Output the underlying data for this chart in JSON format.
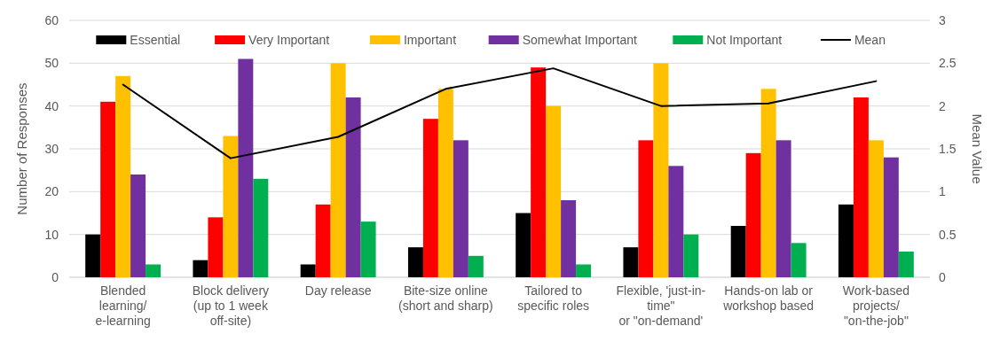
{
  "chart_data": {
    "type": "bar",
    "ylabel": "Number of Responses",
    "y2label": "Mean Value",
    "categories": [
      "Blended\nlearning/\ne-learning",
      "Block delivery\n(up to 1 week\noff-site)",
      "Day release",
      "Bite-size online\n(short and sharp)",
      "Tailored to\nspecific roles",
      "Flexible, 'just-in-\ntime\"\nor \"on-demand'",
      "Hands-on lab or\nworkshop based",
      "Work-based\nprojects/\n\"on-the-job\""
    ],
    "series": [
      {
        "name": "Essential",
        "color": "#000000",
        "values": [
          10,
          4,
          3,
          7,
          15,
          7,
          12,
          17
        ]
      },
      {
        "name": "Very Important",
        "color": "#ff0000",
        "values": [
          41,
          14,
          17,
          37,
          49,
          32,
          29,
          42
        ]
      },
      {
        "name": "Important",
        "color": "#ffc000",
        "values": [
          47,
          33,
          50,
          44,
          40,
          50,
          44,
          32
        ]
      },
      {
        "name": "Somewhat Important",
        "color": "#7030a0",
        "values": [
          24,
          51,
          42,
          32,
          18,
          26,
          32,
          28
        ]
      },
      {
        "name": "Not Important",
        "color": "#00b050",
        "values": [
          3,
          23,
          13,
          5,
          3,
          10,
          8,
          6
        ]
      },
      {
        "name": "Mean",
        "type": "line",
        "axis": "y2",
        "color": "#000000",
        "values": [
          2.25,
          1.39,
          1.64,
          2.2,
          2.44,
          2.0,
          2.03,
          2.29
        ]
      }
    ],
    "ylim": [
      0,
      60
    ],
    "yticks": [
      0,
      10,
      20,
      30,
      40,
      50,
      60
    ],
    "y2lim": [
      0,
      3
    ],
    "y2ticks": [
      0,
      0.5,
      1,
      1.5,
      2,
      2.5,
      3
    ],
    "grid": "y",
    "legend": "top"
  }
}
